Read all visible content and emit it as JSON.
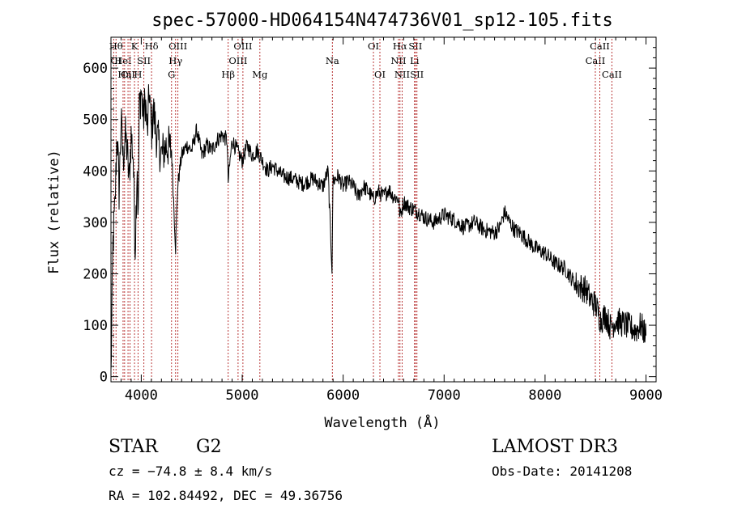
{
  "chart_data": {
    "type": "line",
    "title": "spec-57000-HD064154N474736V01_sp12-105.fits",
    "xlabel": "Wavelength (Å)",
    "ylabel": "Flux (relative)",
    "xlim": [
      3700,
      9100
    ],
    "ylim": [
      -10,
      660
    ],
    "xticks": [
      4000,
      5000,
      6000,
      7000,
      8000,
      9000
    ],
    "yticks": [
      0,
      100,
      200,
      300,
      400,
      500,
      600
    ],
    "line_color": "#000000",
    "marker_color": "#b22222",
    "series": [
      {
        "x": [
          3700,
          3720,
          3740,
          3760,
          3780,
          3800,
          3820,
          3840,
          3860,
          3880,
          3900,
          3920,
          3940,
          3960,
          3970,
          3980,
          4000,
          4020,
          4040,
          4060,
          4080,
          4100,
          4120,
          4150,
          4200,
          4250,
          4300,
          4340,
          4360,
          4400,
          4450,
          4500,
          4550,
          4600,
          4650,
          4700,
          4750,
          4800,
          4850,
          4861,
          4900,
          4950,
          5000,
          5050,
          5100,
          5150,
          5200,
          5250,
          5300,
          5400,
          5500,
          5600,
          5700,
          5800,
          5850,
          5890,
          5895,
          5900,
          5950,
          6000,
          6050,
          6100,
          6150,
          6200,
          6250,
          6300,
          6350,
          6400,
          6450,
          6500,
          6550,
          6563,
          6600,
          6650,
          6700,
          6750,
          6800,
          6900,
          7000,
          7100,
          7200,
          7300,
          7400,
          7500,
          7550,
          7600,
          7650,
          7700,
          7750,
          7800,
          7900,
          8000,
          8100,
          8200,
          8300,
          8400,
          8450,
          8500,
          8550,
          8600,
          8650,
          8700,
          8800,
          8900,
          8950,
          9000
        ],
        "y": [
          0,
          260,
          330,
          480,
          360,
          500,
          420,
          470,
          440,
          380,
          470,
          430,
          250,
          420,
          300,
          520,
          560,
          500,
          540,
          470,
          560,
          470,
          520,
          470,
          430,
          450,
          440,
          250,
          370,
          430,
          450,
          440,
          480,
          430,
          450,
          440,
          460,
          470,
          460,
          380,
          460,
          440,
          420,
          450,
          430,
          440,
          420,
          400,
          410,
          390,
          385,
          375,
          385,
          370,
          400,
          210,
          320,
          380,
          390,
          370,
          380,
          370,
          350,
          370,
          360,
          345,
          360,
          350,
          365,
          350,
          345,
          310,
          340,
          330,
          325,
          320,
          310,
          300,
          315,
          305,
          290,
          300,
          285,
          280,
          290,
          320,
          300,
          285,
          280,
          270,
          250,
          240,
          220,
          210,
          180,
          170,
          150,
          140,
          110,
          120,
          95,
          110,
          100,
          90,
          100,
          80
        ]
      }
    ],
    "markers": [
      {
        "wl": 3727,
        "labels": [],
        "row": 0
      },
      {
        "wl": 3750,
        "labels": [
          "Hθ",
          "CI"
        ],
        "row": 0
      },
      {
        "wl": 3820,
        "labels": [
          "HeI"
        ],
        "row": 1
      },
      {
        "wl": 3835,
        "labels": [
          "Hη"
        ],
        "row": 2
      },
      {
        "wl": 3869,
        "labels": [
          "CII"
        ],
        "row": 2
      },
      {
        "wl": 3889,
        "labels": [],
        "row": 0
      },
      {
        "wl": 3933,
        "labels": [
          "K"
        ],
        "row": 0
      },
      {
        "wl": 3968,
        "labels": [
          "H"
        ],
        "row": 2
      },
      {
        "wl": 4026,
        "labels": [
          "SII"
        ],
        "row": 1
      },
      {
        "wl": 4102,
        "labels": [
          "Hδ"
        ],
        "row": 0
      },
      {
        "wl": 4300,
        "labels": [
          "G"
        ],
        "row": 2
      },
      {
        "wl": 4340,
        "labels": [
          "Hγ"
        ],
        "row": 1
      },
      {
        "wl": 4363,
        "labels": [
          "OIII"
        ],
        "row": 0
      },
      {
        "wl": 4861,
        "labels": [
          "Hβ"
        ],
        "row": 2
      },
      {
        "wl": 4959,
        "labels": [
          "OIII"
        ],
        "row": 1
      },
      {
        "wl": 5007,
        "labels": [
          "OIII"
        ],
        "row": 0
      },
      {
        "wl": 5175,
        "labels": [
          "Mg"
        ],
        "row": 2
      },
      {
        "wl": 5893,
        "labels": [
          "Na"
        ],
        "row": 1
      },
      {
        "wl": 6300,
        "labels": [
          "OI"
        ],
        "row": 0
      },
      {
        "wl": 6364,
        "labels": [
          "OI"
        ],
        "row": 2
      },
      {
        "wl": 6548,
        "labels": [
          "NII"
        ],
        "row": 1
      },
      {
        "wl": 6563,
        "labels": [
          "Hα"
        ],
        "row": 0
      },
      {
        "wl": 6584,
        "labels": [
          "NII"
        ],
        "row": 2
      },
      {
        "wl": 6707,
        "labels": [
          "Li"
        ],
        "row": 1
      },
      {
        "wl": 6716,
        "labels": [
          "SII"
        ],
        "row": 0
      },
      {
        "wl": 6731,
        "labels": [
          "SII"
        ],
        "row": 2
      },
      {
        "wl": 8498,
        "labels": [
          "CaII"
        ],
        "row": 1
      },
      {
        "wl": 8542,
        "labels": [
          "CaII"
        ],
        "row": 0
      },
      {
        "wl": 8662,
        "labels": [
          "CaII"
        ],
        "row": 2
      }
    ]
  },
  "info": {
    "object_type": "STAR",
    "subclass": "G2",
    "survey": "LAMOST DR3",
    "velocity": "cz = −74.8 ± 8.4 km/s",
    "obs_date": "Obs-Date: 20141208",
    "coords": "RA = 102.84492, DEC =  49.36756"
  }
}
